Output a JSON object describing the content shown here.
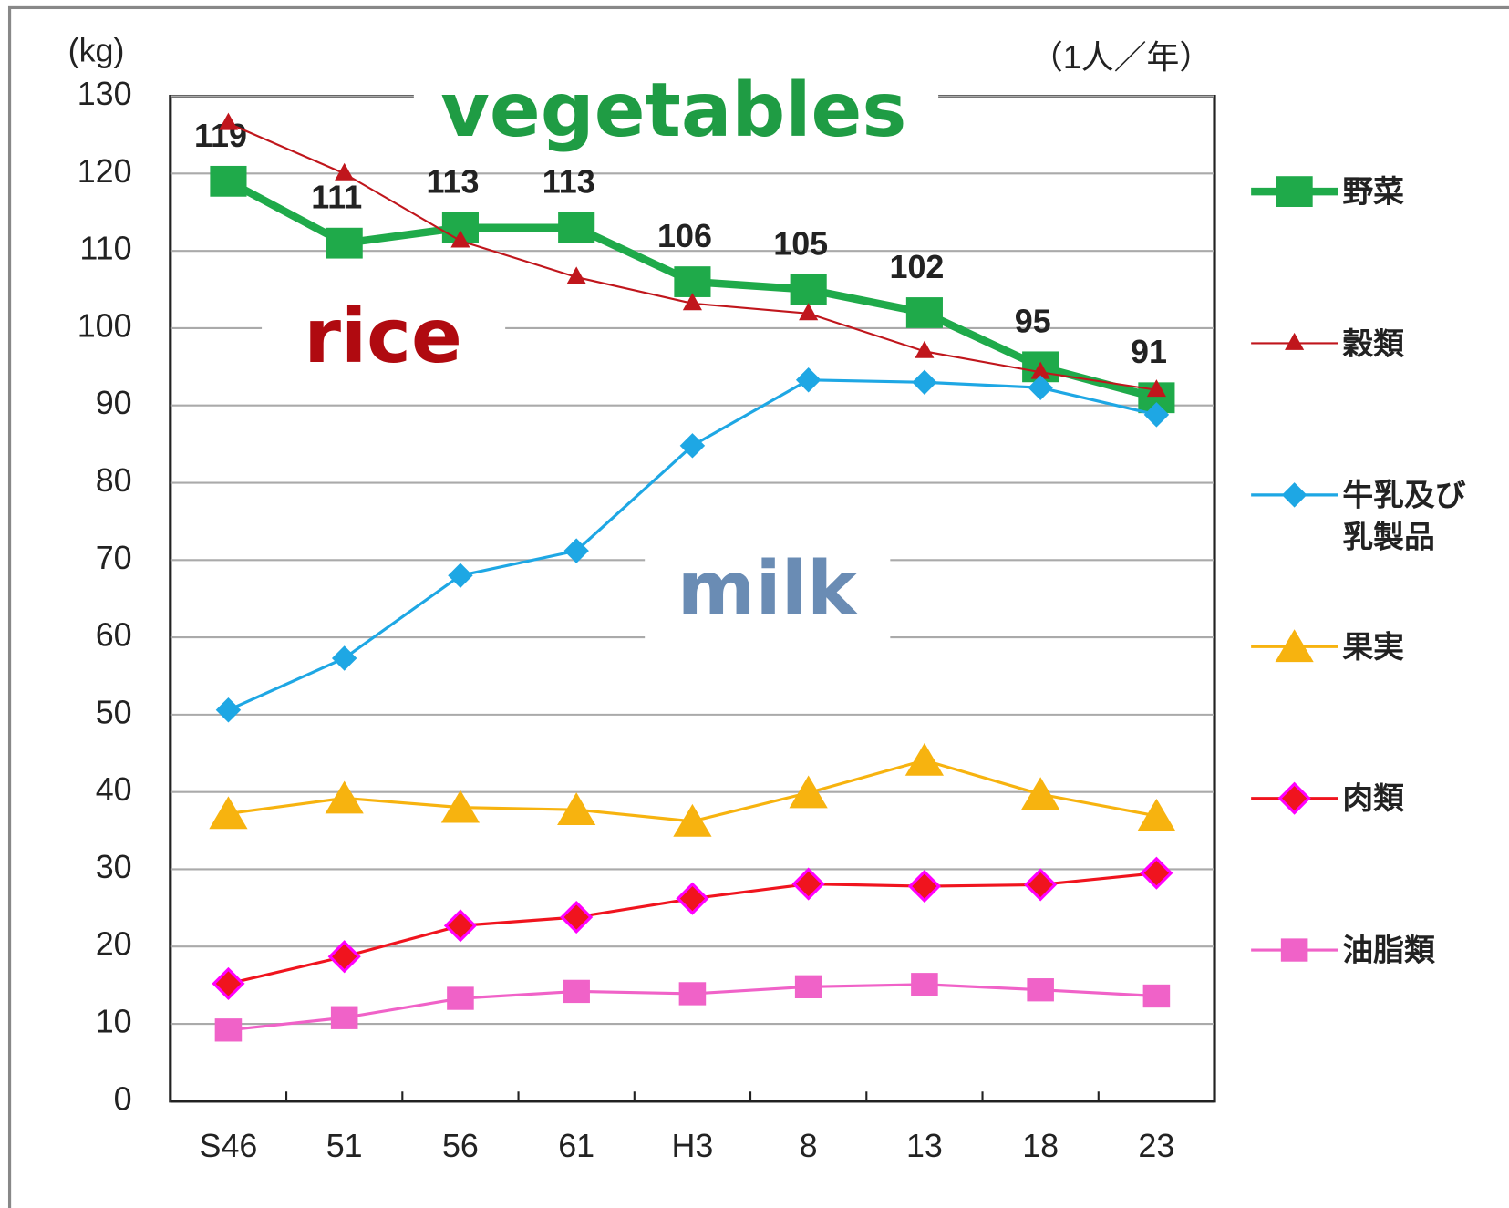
{
  "chart_data": {
    "type": "line",
    "y_unit": "(kg)",
    "unit_note": "（1人／年）",
    "categories": [
      "S46",
      "51",
      "56",
      "61",
      "H3",
      "8",
      "13",
      "18",
      "23"
    ],
    "ylim": [
      0,
      130
    ],
    "yticks": [
      0,
      10,
      20,
      30,
      40,
      50,
      60,
      70,
      80,
      90,
      100,
      110,
      120,
      130
    ],
    "grid": true,
    "legend": "right",
    "series": [
      {
        "name": "野菜",
        "color": "#1faa4a",
        "marker": "square",
        "width": 8,
        "labels": true,
        "values": [
          119,
          111,
          113,
          113,
          106,
          105,
          102,
          95,
          91
        ]
      },
      {
        "name": "穀類",
        "color": "#c0161c",
        "marker": "triangle",
        "width": 2,
        "values": [
          126.5,
          120,
          111.3,
          106.6,
          103.2,
          101.9,
          97,
          94.3,
          92
        ]
      },
      {
        "name": "牛乳及び乳製品",
        "color": "#1ea7e4",
        "marker": "diamond",
        "width": 3,
        "values": [
          50.6,
          57.3,
          68,
          71.2,
          84.8,
          93.3,
          93,
          92.3,
          88.8
        ]
      },
      {
        "name": "果実",
        "color": "#f7b30f",
        "marker": "triangle-big",
        "width": 3,
        "values": [
          37.2,
          39.2,
          38,
          37.7,
          36.2,
          39.9,
          44.1,
          39.7,
          36.9
        ]
      },
      {
        "name": "肉類",
        "color": "#f0141e",
        "marker": "diamond-red",
        "width": 3,
        "values": [
          15.2,
          18.7,
          22.7,
          23.8,
          26.2,
          28.1,
          27.8,
          28,
          29.5
        ]
      },
      {
        "name": "油脂類",
        "color": "#f062c8",
        "marker": "square-small",
        "width": 3,
        "values": [
          9.2,
          10.8,
          13.3,
          14.2,
          13.9,
          14.8,
          15.1,
          14.4,
          13.6
        ]
      }
    ],
    "annotations": [
      {
        "text": "vegetables",
        "color": "#1f9c44"
      },
      {
        "text": "rice",
        "color": "#b00a10"
      },
      {
        "text": "milk",
        "color": "#6a8cb4"
      }
    ]
  }
}
